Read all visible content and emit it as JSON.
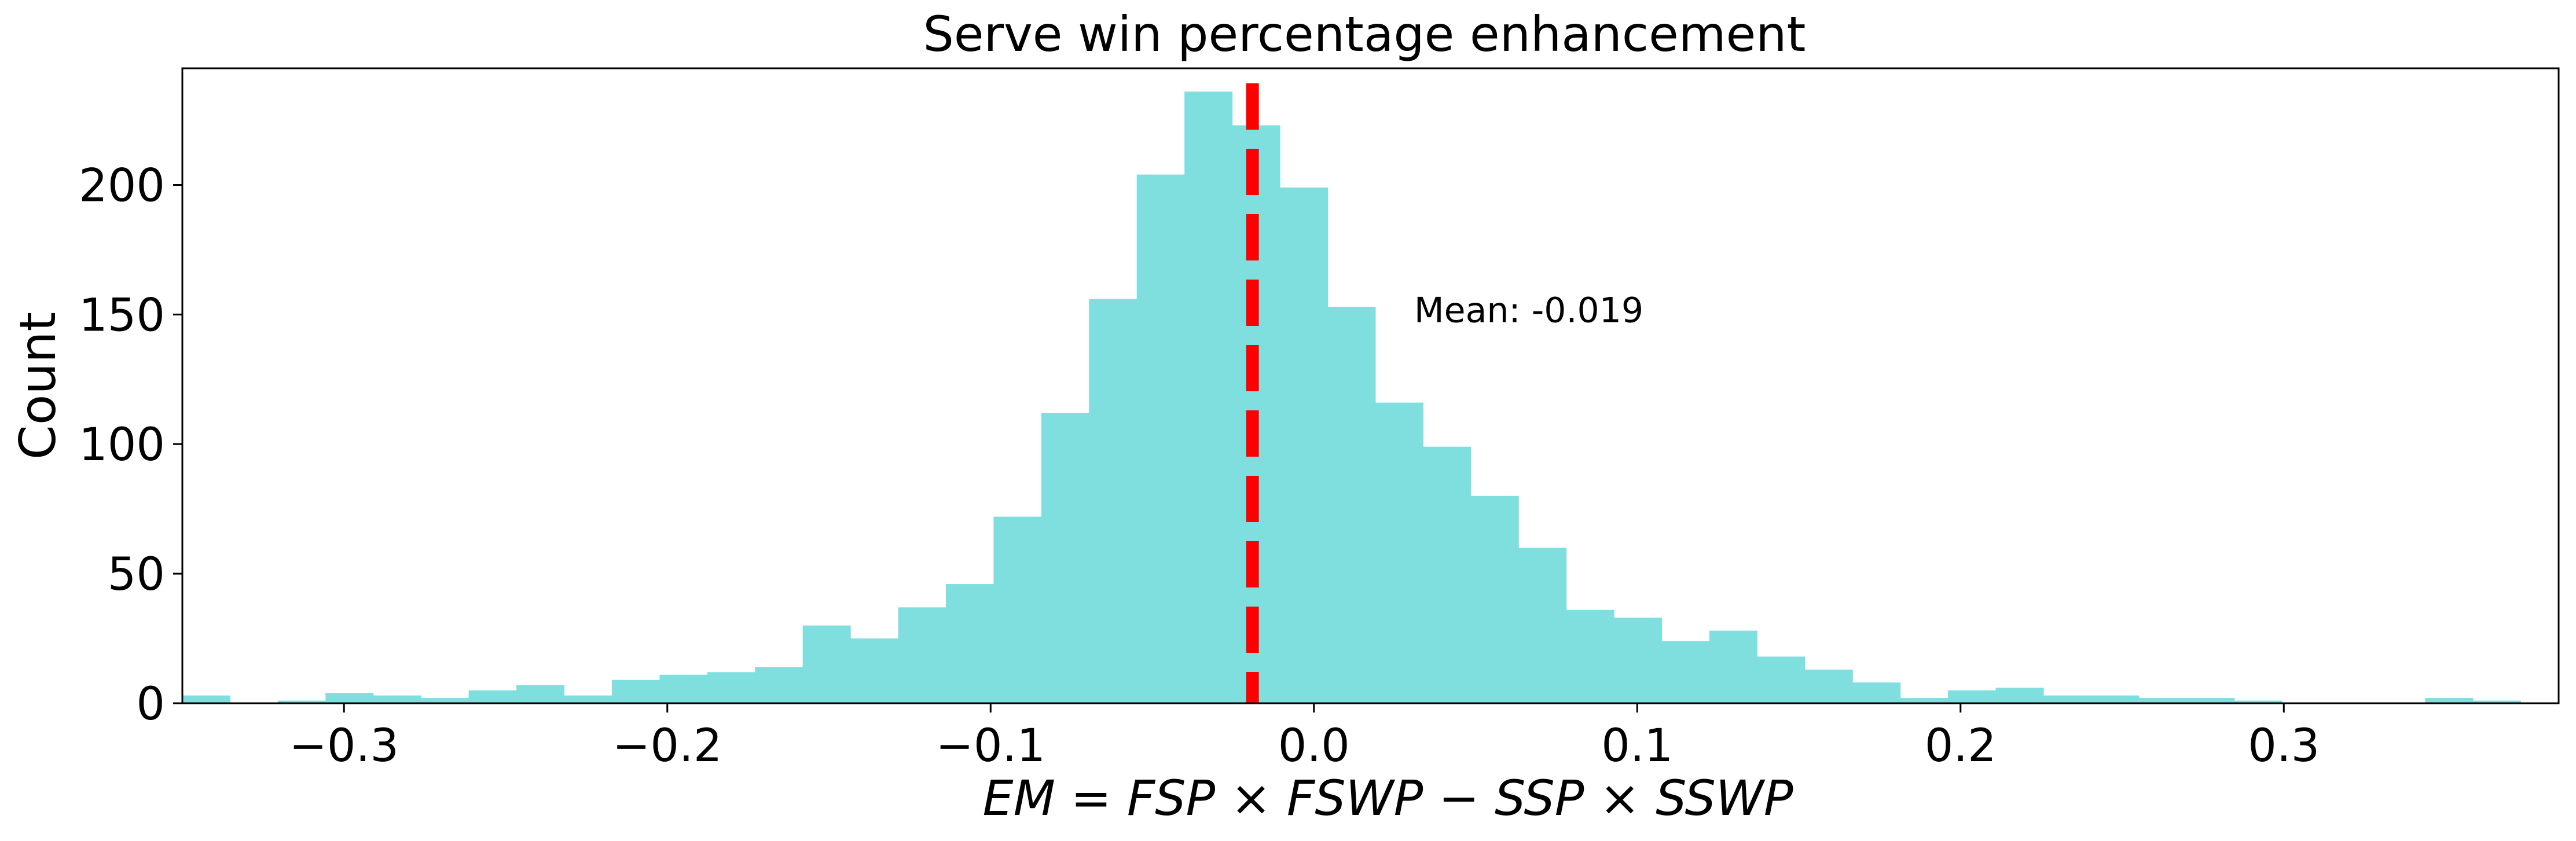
{
  "chart_data": {
    "type": "bar",
    "title": "Serve win percentage enhancement",
    "xlabel": "EM = FSP × FSWP − SSP × SSWP",
    "ylabel": "Count",
    "xlim": [
      -0.35,
      0.385
    ],
    "ylim": [
      0,
      245
    ],
    "xticks": [
      -0.3,
      -0.2,
      -0.1,
      0.0,
      0.1,
      0.2,
      0.3
    ],
    "xtick_labels": [
      "−0.3",
      "−0.2",
      "−0.1",
      "0.0",
      "0.1",
      "0.2",
      "0.3"
    ],
    "yticks": [
      0,
      50,
      100,
      150,
      200
    ],
    "ytick_labels": [
      "0",
      "50",
      "100",
      "150",
      "200"
    ],
    "bar_color": "#7fdfdf",
    "bins": {
      "start": -0.35,
      "width": 0.01476,
      "counts": [
        3,
        0,
        1,
        4,
        3,
        2,
        5,
        7,
        3,
        9,
        11,
        12,
        14,
        30,
        25,
        37,
        46,
        72,
        112,
        156,
        204,
        236,
        223,
        199,
        153,
        116,
        99,
        80,
        60,
        36,
        33,
        24,
        28,
        18,
        13,
        8,
        2,
        5,
        6,
        3,
        3,
        2,
        2,
        1,
        0,
        0,
        0,
        2,
        1,
        0
      ]
    },
    "mean_line": {
      "x": -0.019,
      "color": "#ff0000",
      "style": "dashed",
      "label": "Mean: -0.019"
    },
    "grid": false,
    "legend": "none"
  }
}
